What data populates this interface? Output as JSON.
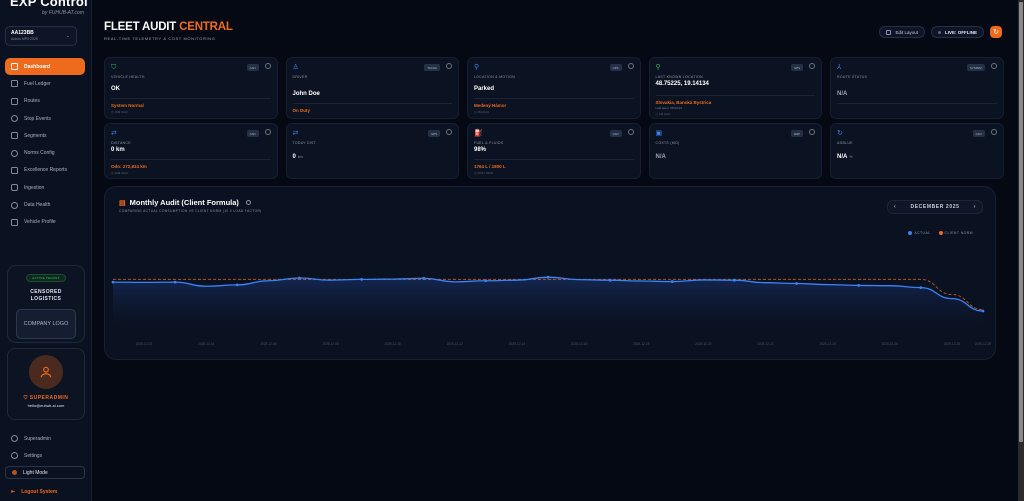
{
  "sidebar": {
    "brand": {
      "logo": "EXP Control",
      "by": "by FUHUB-AT.com"
    },
    "vehicle_selector": {
      "id": "AA123BB",
      "sub": "Actros MP5 2025",
      "chevron": "chevron-down"
    },
    "items": [
      {
        "label": "Dashboard",
        "icon": "grid-icon",
        "active": true
      },
      {
        "label": "Fuel Ledger",
        "icon": "ledger-icon"
      },
      {
        "label": "Routes",
        "icon": "map-icon"
      },
      {
        "label": "Stop Events",
        "icon": "pin-icon"
      },
      {
        "label": "Segments",
        "icon": "segments-icon"
      },
      {
        "label": "Norms Config",
        "icon": "gear-icon"
      },
      {
        "label": "Excellence Reports",
        "icon": "report-icon"
      },
      {
        "label": "Ingestion",
        "icon": "database-icon"
      },
      {
        "label": "Data Health",
        "icon": "health-icon"
      },
      {
        "label": "Vehicle Profile",
        "icon": "truck-icon"
      }
    ],
    "company": {
      "badge": "ACTIVE TENANT",
      "name_line1": "CENSORED",
      "name_line2": "LOGISTICS",
      "logo_placeholder": "COMPANY LOGO"
    },
    "user": {
      "role": "SUPERADMIN",
      "email": "hello@euhub-ai.com"
    },
    "bottom": [
      {
        "label": "Superadmin",
        "icon": "shield-icon"
      },
      {
        "label": "Settings",
        "icon": "gear-icon"
      },
      {
        "label": "Light Mode",
        "icon": "sun-icon"
      },
      {
        "label": "Logout System",
        "icon": "logout-icon"
      }
    ]
  },
  "header": {
    "title_main": "FLEET AUDIT",
    "title_accent": "CENTRAL",
    "subtitle": "REAL-TIME TELEMETRY & COST MONITORING",
    "edit_layout": "Edit Layout",
    "live_status": "LIVE: OFFLINE",
    "refresh_icon": "refresh"
  },
  "cards": [
    {
      "icon": "shield-icon",
      "icon_color": "#2fb35d",
      "tag": "CAN",
      "label": "VEHICLE HEALTH",
      "value": "OK",
      "sub": "System Normal",
      "time": "15M AGO"
    },
    {
      "icon": "user-icon",
      "icon_color": "#3b82f6",
      "tag": "TACHO",
      "label": "DRIVER",
      "value": "John Doe",
      "sub": "On Duty",
      "time": ""
    },
    {
      "icon": "pin-icon",
      "icon_color": "#3b82f6",
      "tag": "GPS",
      "label": "LOCATION & MOTION",
      "value": "Parked",
      "sub": "Medený Hámor",
      "time": "1M AGO"
    },
    {
      "icon": "pin-icon",
      "icon_color": "#2fb35d",
      "tag": "GPS",
      "label": "LAST KNOWN LOCATION",
      "value": "48.75225, 19.14134",
      "sub": "Slovakia, Banská Bystrica",
      "sub2": "Last seen: 09:04:44",
      "time": "1M AGO"
    },
    {
      "icon": "route-icon",
      "icon_color": "#3b82f6",
      "tag": "SYSTEM",
      "label": "ROUTE STATUS",
      "value": "N/A",
      "sub": "",
      "time": ""
    },
    {
      "icon": "arrows-icon",
      "icon_color": "#3b82f6",
      "tag": "CAN",
      "label": "DISTANCE",
      "value": "0 km",
      "sub": "Odo: 272,834 km",
      "time": "10M AGO"
    },
    {
      "icon": "arrows-icon",
      "icon_color": "#3b82f6",
      "tag": "GPS",
      "label": "TODAY DIST.",
      "value": "0",
      "unit": "km",
      "sub": "",
      "time": ""
    },
    {
      "icon": "fuel-icon",
      "icon_color": "#2fb35d",
      "tag": "CAN",
      "label": "FUEL & FLUIDS",
      "value": "98%",
      "sub": "1764 L / 1800 L",
      "time": "JUST NOW"
    },
    {
      "icon": "cost-icon",
      "icon_color": "#3b82f6",
      "tag": "ERP",
      "label": "COSTS (MO)",
      "value": "N/A",
      "sub": "",
      "time": ""
    },
    {
      "icon": "adblue-icon",
      "icon_color": "#3b82f6",
      "tag": "CAN",
      "label": "ADBLUE",
      "value": "N/A",
      "unit": "%",
      "sub": "",
      "time": ""
    }
  ],
  "chart_panel": {
    "title": "Monthly Audit (Client Formula)",
    "subtitle": "COMPARING ACTUAL CONSUMPTION VS CLIENT NORM (10.0 LOAD FACTOR)",
    "month": "DECEMBER 2025",
    "prev": "‹",
    "next": "›",
    "legend": [
      {
        "label": "ACTUAL",
        "color": "#3b82f6"
      },
      {
        "label": "CLIENT NORM",
        "color": "#ee6b1e"
      }
    ]
  },
  "chart_data": {
    "type": "line",
    "title": "Monthly Audit (Client Formula)",
    "xlabel": "",
    "ylabel": "",
    "x": [
      "2025-12-01",
      "2025-12-02",
      "2025-12-03",
      "2025-12-04",
      "2025-12-05",
      "2025-12-06",
      "2025-12-07",
      "2025-12-08",
      "2025-12-09",
      "2025-12-10",
      "2025-12-11",
      "2025-12-12",
      "2025-12-13",
      "2025-12-14",
      "2025-12-15",
      "2025-12-16",
      "2025-12-17",
      "2025-12-18",
      "2025-12-19",
      "2025-12-20",
      "2025-12-21",
      "2025-12-22",
      "2025-12-23",
      "2025-12-24",
      "2025-12-25",
      "2025-12-26",
      "2025-12-27",
      "2025-12-28",
      "2025-12-29"
    ],
    "series": [
      {
        "name": "Actual",
        "color": "#3b82f6",
        "values": [
          32.5,
          32.4,
          32.5,
          31.0,
          31.5,
          33.0,
          34.0,
          33.2,
          33.5,
          33.6,
          33.9,
          32.6,
          33.0,
          33.2,
          34.3,
          33.4,
          33.2,
          32.9,
          32.7,
          33.3,
          33.2,
          32.3,
          32.0,
          31.6,
          31.3,
          31.2,
          30.5,
          26.5,
          22.0
        ]
      },
      {
        "name": "Client Norm",
        "color": "#ee6b1e",
        "values": [
          33.5,
          33.5,
          33.5,
          33.5,
          33.5,
          33.5,
          33.5,
          33.5,
          33.5,
          33.5,
          33.5,
          33.5,
          33.5,
          33.5,
          33.5,
          33.5,
          33.5,
          33.5,
          33.5,
          33.5,
          33.5,
          33.5,
          33.5,
          33.5,
          33.5,
          33.5,
          33.5,
          28.0,
          22.5
        ]
      }
    ],
    "legend_position": "top-right",
    "grid": false
  }
}
